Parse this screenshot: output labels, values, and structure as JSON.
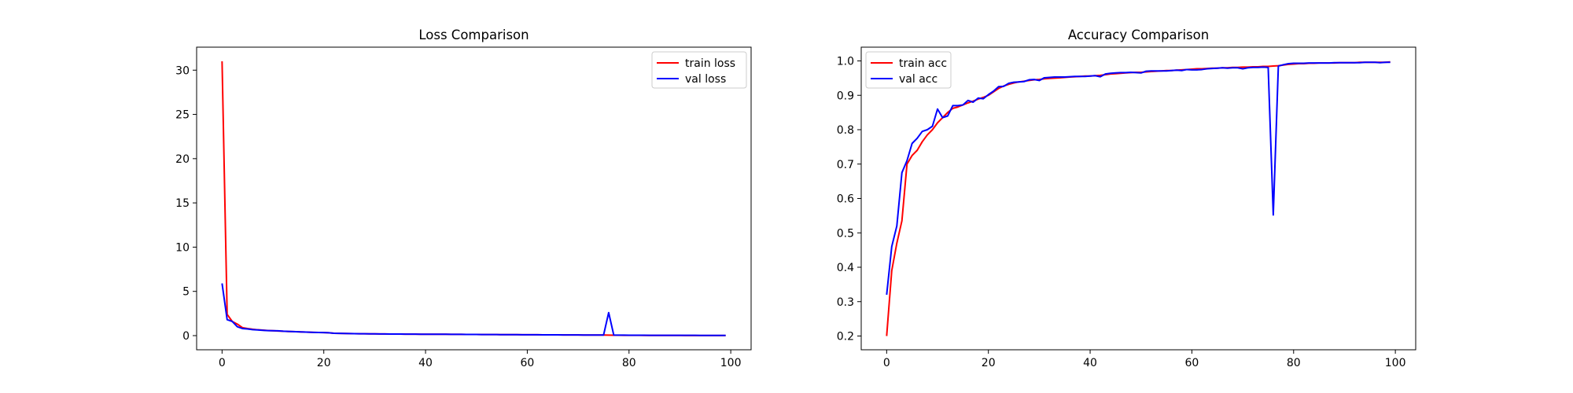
{
  "chart_data": [
    {
      "type": "line",
      "title": "Loss Comparison",
      "xlabel": "",
      "ylabel": "",
      "xlim": [
        -5,
        104
      ],
      "ylim": [
        -1.6,
        32.6
      ],
      "xticks": [
        0,
        20,
        40,
        60,
        80,
        100
      ],
      "yticks": [
        0,
        5,
        10,
        15,
        20,
        25,
        30
      ],
      "legend": "top-right",
      "grid": false,
      "series": [
        {
          "name": "train loss",
          "color": "#ff0000",
          "x": [
            0,
            1,
            2,
            3,
            4,
            5,
            6,
            7,
            8,
            9,
            10,
            11,
            12,
            13,
            14,
            15,
            16,
            17,
            18,
            19,
            20,
            21,
            22,
            23,
            24,
            25,
            26,
            27,
            28,
            29,
            30,
            31,
            32,
            33,
            34,
            35,
            36,
            37,
            38,
            39,
            40,
            41,
            42,
            43,
            44,
            45,
            46,
            47,
            48,
            49,
            50,
            51,
            52,
            53,
            54,
            55,
            56,
            57,
            58,
            59,
            60,
            61,
            62,
            63,
            64,
            65,
            66,
            67,
            68,
            69,
            70,
            71,
            72,
            73,
            74,
            75,
            76,
            77,
            78,
            79,
            80,
            81,
            82,
            83,
            84,
            85,
            86,
            87,
            88,
            89,
            90,
            91,
            92,
            93,
            94,
            95,
            96,
            97,
            98,
            99
          ],
          "y": [
            31.0,
            2.4,
            1.6,
            1.3,
            0.9,
            0.8,
            0.72,
            0.66,
            0.62,
            0.58,
            0.55,
            0.52,
            0.5,
            0.47,
            0.45,
            0.43,
            0.41,
            0.39,
            0.37,
            0.35,
            0.34,
            0.32,
            0.27,
            0.25,
            0.24,
            0.23,
            0.22,
            0.21,
            0.21,
            0.2,
            0.2,
            0.19,
            0.19,
            0.18,
            0.18,
            0.18,
            0.17,
            0.17,
            0.17,
            0.16,
            0.16,
            0.16,
            0.15,
            0.15,
            0.15,
            0.14,
            0.14,
            0.14,
            0.13,
            0.13,
            0.13,
            0.12,
            0.12,
            0.12,
            0.12,
            0.11,
            0.11,
            0.11,
            0.11,
            0.1,
            0.1,
            0.1,
            0.1,
            0.09,
            0.09,
            0.09,
            0.09,
            0.08,
            0.08,
            0.08,
            0.08,
            0.07,
            0.07,
            0.07,
            0.07,
            0.06,
            0.05,
            0.04,
            0.04,
            0.03,
            0.03,
            0.03,
            0.03,
            0.02,
            0.02,
            0.02,
            0.02,
            0.02,
            0.02,
            0.02,
            0.02,
            0.01,
            0.01,
            0.01,
            0.01,
            0.01,
            0.01,
            0.01,
            0.01,
            0.01
          ]
        },
        {
          "name": "val loss",
          "color": "#0000ff",
          "x": [
            0,
            1,
            2,
            3,
            4,
            5,
            6,
            7,
            8,
            9,
            10,
            11,
            12,
            13,
            14,
            15,
            16,
            17,
            18,
            19,
            20,
            21,
            22,
            23,
            24,
            25,
            26,
            27,
            28,
            29,
            30,
            31,
            32,
            33,
            34,
            35,
            36,
            37,
            38,
            39,
            40,
            41,
            42,
            43,
            44,
            45,
            46,
            47,
            48,
            49,
            50,
            51,
            52,
            53,
            54,
            55,
            56,
            57,
            58,
            59,
            60,
            61,
            62,
            63,
            64,
            65,
            66,
            67,
            68,
            69,
            70,
            71,
            72,
            73,
            74,
            75,
            76,
            77,
            78,
            79,
            80,
            81,
            82,
            83,
            84,
            85,
            86,
            87,
            88,
            89,
            90,
            91,
            92,
            93,
            94,
            95,
            96,
            97,
            98,
            99
          ],
          "y": [
            5.9,
            1.8,
            1.6,
            1.0,
            0.8,
            0.75,
            0.68,
            0.64,
            0.6,
            0.57,
            0.55,
            0.54,
            0.5,
            0.48,
            0.45,
            0.43,
            0.41,
            0.39,
            0.37,
            0.35,
            0.34,
            0.32,
            0.27,
            0.25,
            0.24,
            0.23,
            0.22,
            0.21,
            0.21,
            0.2,
            0.2,
            0.19,
            0.19,
            0.18,
            0.18,
            0.18,
            0.17,
            0.17,
            0.17,
            0.16,
            0.16,
            0.16,
            0.15,
            0.15,
            0.15,
            0.14,
            0.14,
            0.14,
            0.13,
            0.13,
            0.13,
            0.12,
            0.12,
            0.12,
            0.12,
            0.11,
            0.11,
            0.11,
            0.11,
            0.1,
            0.1,
            0.1,
            0.1,
            0.09,
            0.09,
            0.09,
            0.09,
            0.08,
            0.08,
            0.08,
            0.08,
            0.07,
            0.07,
            0.07,
            0.07,
            0.07,
            2.6,
            0.06,
            0.05,
            0.05,
            0.04,
            0.04,
            0.04,
            0.04,
            0.03,
            0.03,
            0.03,
            0.03,
            0.03,
            0.03,
            0.03,
            0.03,
            0.03,
            0.03,
            0.02,
            0.02,
            0.02,
            0.02,
            0.02,
            0.02
          ]
        }
      ]
    },
    {
      "type": "line",
      "title": "Accuracy Comparison",
      "xlabel": "",
      "ylabel": "",
      "xlim": [
        -5,
        104
      ],
      "ylim": [
        0.16,
        1.04
      ],
      "xticks": [
        0,
        20,
        40,
        60,
        80,
        100
      ],
      "yticks": [
        0.2,
        0.3,
        0.4,
        0.5,
        0.6,
        0.7,
        0.8,
        0.9,
        1.0
      ],
      "ytick_labels": [
        "0.2",
        "0.3",
        "0.4",
        "0.5",
        "0.6",
        "0.7",
        "0.8",
        "0.9",
        "1.0"
      ],
      "legend": "top-left",
      "grid": false,
      "series": [
        {
          "name": "train acc",
          "color": "#ff0000",
          "x": [
            0,
            1,
            2,
            3,
            4,
            5,
            6,
            7,
            8,
            9,
            10,
            11,
            12,
            13,
            14,
            15,
            16,
            17,
            18,
            19,
            20,
            21,
            22,
            23,
            24,
            25,
            26,
            27,
            28,
            29,
            30,
            31,
            32,
            33,
            34,
            35,
            36,
            37,
            38,
            39,
            40,
            41,
            42,
            43,
            44,
            45,
            46,
            47,
            48,
            49,
            50,
            51,
            52,
            53,
            54,
            55,
            56,
            57,
            58,
            59,
            60,
            61,
            62,
            63,
            64,
            65,
            66,
            67,
            68,
            69,
            70,
            71,
            72,
            73,
            74,
            75,
            76,
            77,
            78,
            79,
            80,
            81,
            82,
            83,
            84,
            85,
            86,
            87,
            88,
            89,
            90,
            91,
            92,
            93,
            94,
            95,
            96,
            97,
            98,
            99
          ],
          "y": [
            0.2,
            0.39,
            0.47,
            0.535,
            0.7,
            0.725,
            0.74,
            0.765,
            0.785,
            0.8,
            0.82,
            0.835,
            0.85,
            0.862,
            0.866,
            0.872,
            0.878,
            0.883,
            0.889,
            0.894,
            0.9,
            0.91,
            0.92,
            0.927,
            0.932,
            0.936,
            0.939,
            0.941,
            0.943,
            0.945,
            0.946,
            0.948,
            0.949,
            0.95,
            0.951,
            0.952,
            0.953,
            0.954,
            0.955,
            0.956,
            0.956,
            0.957,
            0.958,
            0.96,
            0.962,
            0.963,
            0.964,
            0.965,
            0.966,
            0.967,
            0.967,
            0.968,
            0.969,
            0.97,
            0.971,
            0.972,
            0.972,
            0.973,
            0.974,
            0.975,
            0.976,
            0.977,
            0.977,
            0.978,
            0.979,
            0.979,
            0.98,
            0.98,
            0.981,
            0.981,
            0.982,
            0.982,
            0.983,
            0.983,
            0.984,
            0.984,
            0.985,
            0.986,
            0.988,
            0.99,
            0.991,
            0.992,
            0.992,
            0.993,
            0.993,
            0.994,
            0.994,
            0.994,
            0.994,
            0.995,
            0.995,
            0.995,
            0.995,
            0.996,
            0.996,
            0.996,
            0.996,
            0.996,
            0.996,
            0.997
          ]
        },
        {
          "name": "val acc",
          "color": "#0000ff",
          "x": [
            0,
            1,
            2,
            3,
            4,
            5,
            6,
            7,
            8,
            9,
            10,
            11,
            12,
            13,
            14,
            15,
            16,
            17,
            18,
            19,
            20,
            21,
            22,
            23,
            24,
            25,
            26,
            27,
            28,
            29,
            30,
            31,
            32,
            33,
            34,
            35,
            36,
            37,
            38,
            39,
            40,
            41,
            42,
            43,
            44,
            45,
            46,
            47,
            48,
            49,
            50,
            51,
            52,
            53,
            54,
            55,
            56,
            57,
            58,
            59,
            60,
            61,
            62,
            63,
            64,
            65,
            66,
            67,
            68,
            69,
            70,
            71,
            72,
            73,
            74,
            75,
            76,
            77,
            78,
            79,
            80,
            81,
            82,
            83,
            84,
            85,
            86,
            87,
            88,
            89,
            90,
            91,
            92,
            93,
            94,
            95,
            96,
            97,
            98,
            99
          ],
          "y": [
            0.32,
            0.46,
            0.52,
            0.675,
            0.71,
            0.76,
            0.775,
            0.795,
            0.8,
            0.81,
            0.86,
            0.835,
            0.84,
            0.87,
            0.87,
            0.872,
            0.885,
            0.88,
            0.892,
            0.89,
            0.902,
            0.912,
            0.925,
            0.926,
            0.935,
            0.938,
            0.939,
            0.94,
            0.945,
            0.946,
            0.943,
            0.951,
            0.952,
            0.953,
            0.953,
            0.953,
            0.954,
            0.955,
            0.955,
            0.955,
            0.956,
            0.957,
            0.954,
            0.962,
            0.964,
            0.965,
            0.966,
            0.966,
            0.967,
            0.966,
            0.965,
            0.97,
            0.971,
            0.971,
            0.971,
            0.971,
            0.972,
            0.973,
            0.972,
            0.975,
            0.974,
            0.974,
            0.975,
            0.977,
            0.978,
            0.979,
            0.98,
            0.979,
            0.98,
            0.98,
            0.977,
            0.98,
            0.981,
            0.981,
            0.982,
            0.981,
            0.552,
            0.985,
            0.989,
            0.992,
            0.993,
            0.993,
            0.993,
            0.994,
            0.994,
            0.994,
            0.994,
            0.994,
            0.995,
            0.995,
            0.995,
            0.995,
            0.995,
            0.995,
            0.996,
            0.996,
            0.996,
            0.995,
            0.996,
            0.996
          ]
        }
      ]
    }
  ]
}
